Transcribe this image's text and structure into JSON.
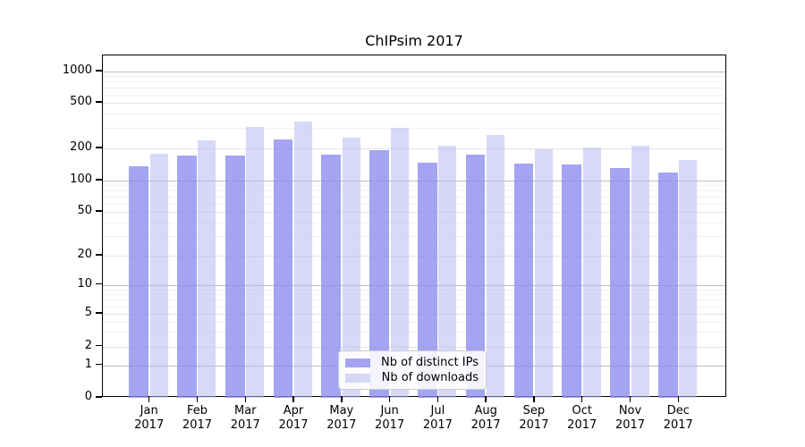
{
  "chart_data": {
    "type": "bar",
    "title": "ChIPsim 2017",
    "categories": [
      {
        "line1": "Jan",
        "line2": "2017"
      },
      {
        "line1": "Feb",
        "line2": "2017"
      },
      {
        "line1": "Mar",
        "line2": "2017"
      },
      {
        "line1": "Apr",
        "line2": "2017"
      },
      {
        "line1": "May",
        "line2": "2017"
      },
      {
        "line1": "Jun",
        "line2": "2017"
      },
      {
        "line1": "Jul",
        "line2": "2017"
      },
      {
        "line1": "Aug",
        "line2": "2017"
      },
      {
        "line1": "Sep",
        "line2": "2017"
      },
      {
        "line1": "Oct",
        "line2": "2017"
      },
      {
        "line1": "Nov",
        "line2": "2017"
      },
      {
        "line1": "Dec",
        "line2": "2017"
      }
    ],
    "series": [
      {
        "name": "Nb of distinct IPs",
        "color": "rgba(138,138,238,0.78)",
        "values": [
          136,
          172,
          170,
          240,
          176,
          193,
          148,
          174,
          145,
          142,
          132,
          119
        ]
      },
      {
        "name": "Nb of downloads",
        "color": "rgba(186,186,243,0.56)",
        "values": [
          178,
          233,
          310,
          345,
          247,
          305,
          212,
          262,
          197,
          203,
          212,
          157
        ]
      }
    ],
    "xlabel": "",
    "ylabel": "",
    "yscale": "symlog",
    "yticks": [
      0,
      1,
      2,
      5,
      10,
      20,
      50,
      100,
      200,
      500,
      1000
    ],
    "ylim": [
      0,
      1400
    ],
    "grid": "on",
    "legend_position": "inside-lower-center"
  }
}
